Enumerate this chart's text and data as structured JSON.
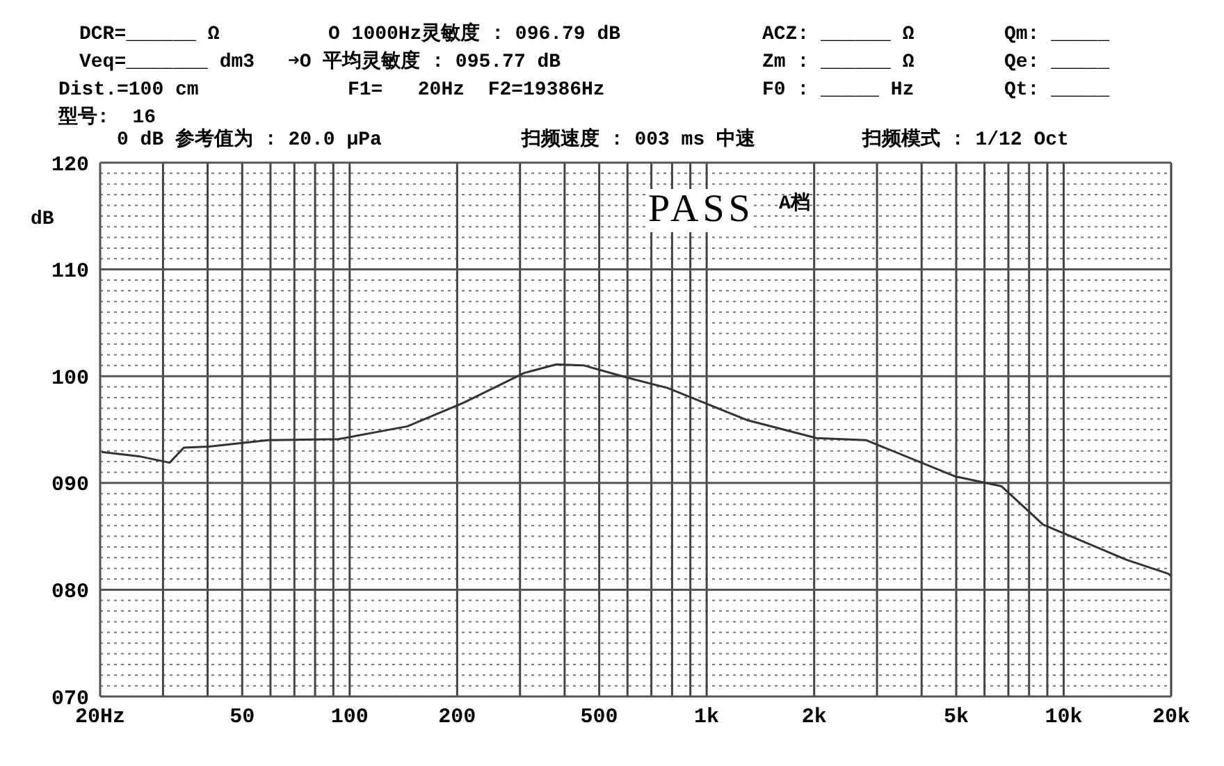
{
  "chart_data": {
    "type": "line",
    "ylabel": "dB",
    "annotations": [
      "DCR=______ Ω",
      "O 1000Hz灵敏度 : 096.79 dB",
      "ACZ: ______ Ω",
      "Qm: _____",
      "Veq=_______ dm3",
      "➜O 平均灵敏度 : 095.77 dB",
      "Zm : ______ Ω",
      "Qe: _____",
      "Dist.=100 cm",
      "F1=   20Hz  F2=19386Hz",
      "F0 : _____ Hz",
      "Qt: _____",
      "型号:  16",
      "0 dB 参考值为 : 20.0 μPa",
      "扫频速度 : 003 ms 中速",
      "扫频模式 : 1/12 Oct",
      "PASS",
      "A档"
    ],
    "log": "x",
    "grid": true,
    "marker": "none",
    "line_style": "solid",
    "xlim": [
      20,
      20000
    ],
    "ylim": [
      70,
      120
    ],
    "xticks": [
      {
        "value": 20,
        "label": "20Hz"
      },
      {
        "value": 30,
        "label": null
      },
      {
        "value": 40,
        "label": null
      },
      50,
      {
        "value": 60,
        "label": null
      },
      {
        "value": 70,
        "label": null
      },
      {
        "value": 80,
        "label": null
      },
      {
        "value": 90,
        "label": null
      },
      100,
      200,
      {
        "value": 300,
        "label": null
      },
      {
        "value": 400,
        "label": null
      },
      500,
      {
        "value": 600,
        "label": null
      },
      {
        "value": 700,
        "label": null
      },
      {
        "value": 800,
        "label": null
      },
      {
        "value": 900,
        "label": null
      },
      {
        "value": 1000,
        "label": "1k"
      },
      {
        "value": 2000,
        "label": "2k"
      },
      {
        "value": 3000,
        "label": null
      },
      {
        "value": 4000,
        "label": null
      },
      {
        "value": 5000,
        "label": "5k"
      },
      {
        "value": 6000,
        "label": null
      },
      {
        "value": 7000,
        "label": null
      },
      {
        "value": 8000,
        "label": null
      },
      {
        "value": 9000,
        "label": null
      },
      {
        "value": 10000,
        "label": "10k"
      },
      {
        "value": 20000,
        "label": "20k"
      }
    ],
    "yticks": [
      {
        "value": 70,
        "label": "070"
      },
      {
        "value": 80,
        "label": "080"
      },
      {
        "value": 90,
        "label": "090"
      },
      100,
      110,
      120
    ],
    "series": [
      {
        "color": "#333333",
        "x": [
          20.2,
          25.7,
          31.3,
          34.3,
          40.3,
          59,
          93,
          145,
          208,
          308,
          379,
          454,
          594,
          777,
          1295,
          2030,
          2800,
          4980,
          6690,
          8750,
          15000,
          19640,
          20000
        ],
        "values": [
          92.9,
          92.5,
          91.9,
          93.3,
          93.4,
          94.0,
          94.1,
          95.3,
          97.5,
          100.3,
          101.1,
          101.0,
          99.9,
          98.9,
          95.9,
          94.2,
          94.0,
          90.6,
          89.7,
          86.1,
          82.8,
          81.5,
          81.3
        ]
      }
    ]
  }
}
